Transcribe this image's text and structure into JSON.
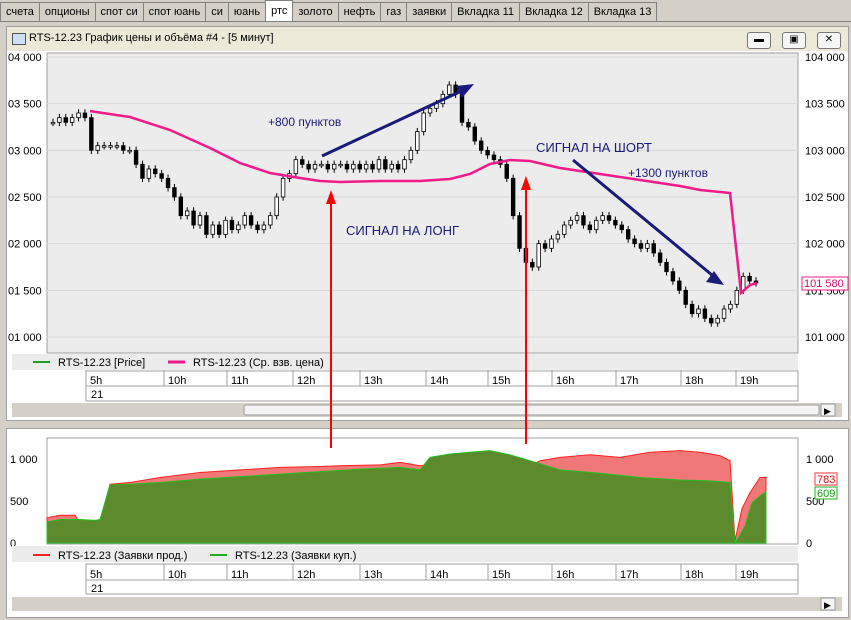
{
  "tabs": [
    "счета",
    "опционы",
    "спот си",
    "спот юань",
    "си",
    "юань",
    "ртс",
    "золото",
    "нефть",
    "газ",
    "заявки",
    "Вкладка 11",
    "Вкладка 12",
    "Вкладка 13"
  ],
  "active_tab": "ртс",
  "window": {
    "title": "RTS-12.23 График цены и объёма #4 - [5 минут]",
    "min": "▬",
    "max": "▣",
    "close": "✕"
  },
  "price_chart": {
    "left_ticks": [
      "04 000",
      "03 500",
      "03 000",
      "02 500",
      "02 000",
      "01 500",
      "01 000"
    ],
    "right_ticks": [
      "104 000",
      "103 500",
      "103 000",
      "102 500",
      "102 000",
      "101 500",
      "101 000"
    ],
    "current_price": "101 580",
    "legend": {
      "price": "RTS-12.23 [Price]",
      "vwap": "RTS-12.23 (Ср. взв. цена)"
    },
    "annotations": {
      "gain_long": "+800 пунктов",
      "signal_long": "СИГНАЛ НА ЛОНГ",
      "signal_short": "СИГНАЛ НА ШОРТ",
      "gain_short": "+1300 пунктов"
    },
    "time_labels": [
      "5h",
      "10h",
      "11h",
      "12h",
      "13h",
      "14h",
      "15h",
      "16h",
      "17h",
      "18h",
      "19h"
    ],
    "date_label": "21"
  },
  "volume_chart": {
    "left_ticks": [
      "1 000",
      "500",
      "0"
    ],
    "right_ticks": [
      "1 000",
      "500",
      "0"
    ],
    "sell_value": "783",
    "buy_value": "609",
    "legend": {
      "sell": "RTS-12.23 (Заявки прод.)",
      "buy": "RTS-12.23 (Заявки куп.)"
    },
    "time_labels": [
      "5h",
      "10h",
      "11h",
      "12h",
      "13h",
      "14h",
      "15h",
      "16h",
      "17h",
      "18h",
      "19h"
    ],
    "date_label": "21"
  },
  "colors": {
    "accent": "#f01a8a",
    "up": "#000000",
    "arrow_red": "#ff0000",
    "arrow_blue": "#1a1a7a",
    "sell": "#ff3030",
    "buy": "#20b020"
  }
}
